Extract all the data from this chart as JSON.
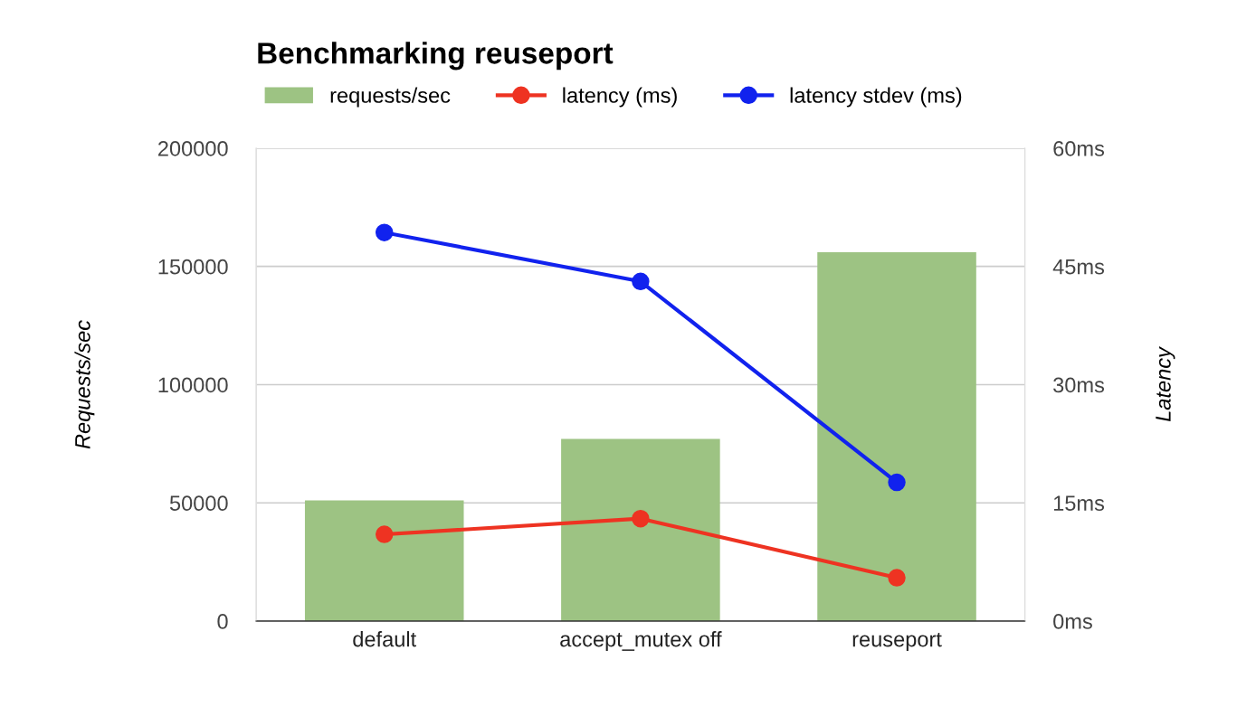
{
  "chart_data": {
    "type": "bar",
    "title": "Benchmarking reuseport",
    "categories": [
      "default",
      "accept_mutex off",
      "reuseport"
    ],
    "series": [
      {
        "name": "requests/sec",
        "color": "#9dc383",
        "values": [
          51000,
          77000,
          156000
        ]
      },
      {
        "name": "latency (ms)",
        "type": "line",
        "axis": "y2",
        "color": "#ee3322",
        "values": [
          11.0,
          13.0,
          5.5
        ]
      },
      {
        "name": "latency stdev (ms)",
        "type": "line",
        "axis": "y2",
        "color": "#1122ee",
        "values": [
          49.3,
          43.1,
          17.6
        ]
      }
    ],
    "ylabel": "Requests/sec",
    "y2label": "Latency",
    "ylim": [
      0,
      200000
    ],
    "yticks": [
      0,
      50000,
      100000,
      150000,
      200000
    ],
    "y2lim": [
      0,
      60
    ],
    "y2ticks": [
      {
        "value": 0,
        "label": "0ms"
      },
      {
        "value": 15,
        "label": "15ms"
      },
      {
        "value": 30,
        "label": "30ms"
      },
      {
        "value": 45,
        "label": "45ms"
      },
      {
        "value": 60,
        "label": "60ms"
      }
    ],
    "grid": "y",
    "legend": "top",
    "marker": "circle",
    "line_style": "solid"
  }
}
